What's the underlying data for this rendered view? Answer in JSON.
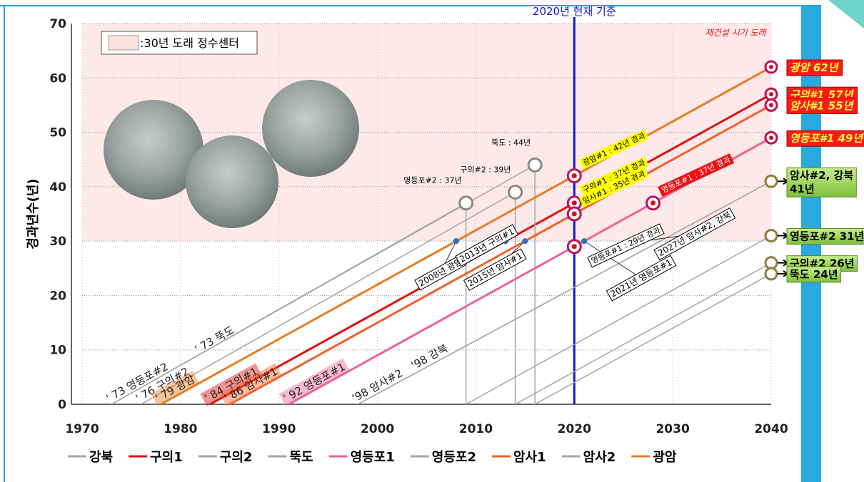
{
  "chart_data": {
    "type": "line",
    "y_label": "경과년수(년)",
    "xlim": [
      1970,
      2040
    ],
    "xticks": [
      1970,
      1980,
      1990,
      2000,
      2010,
      2020,
      2030,
      2040
    ],
    "ylim": [
      0,
      70
    ],
    "yticks": [
      0,
      10,
      20,
      30,
      40,
      50,
      60,
      70
    ],
    "grid": true,
    "threshold": {
      "value": 30,
      "label": "재건설 시기 도래",
      "color": "#fde9e9"
    },
    "legend_box": ":30년 도래 정수센터",
    "reference": {
      "x": 2020,
      "label": "2020년 현재 기준",
      "color": "#1414d8"
    },
    "series": [
      {
        "name": "강북",
        "color": "#a6a6a6",
        "x": [
          1998,
          2040
        ],
        "values": [
          0,
          41
        ],
        "start_label": "'98 강북"
      },
      {
        "name": "구의1",
        "color": "#e01010",
        "x": [
          1983,
          2040
        ],
        "values": [
          0,
          57
        ],
        "start_label": "' 84 구의#1",
        "end_label": [
          "구의#1 57년"
        ],
        "label_color": "#ff1a1a"
      },
      {
        "name": "구의2",
        "color": "#a6a6a6",
        "x": [
          1976,
          2014,
          2014,
          2040
        ],
        "values": [
          0,
          39,
          0,
          26
        ],
        "start_label": "' 76 구의#2",
        "end_label": [
          "구의#2 26년"
        ],
        "label_color": "#92d050"
      },
      {
        "name": "뚝도",
        "color": "#a6a6a6",
        "x": [
          1973,
          2016,
          2016,
          2040
        ],
        "values": [
          0,
          44,
          0,
          24
        ],
        "start_label": "' 73 뚝도",
        "end_label": [
          "뚝도 24년"
        ],
        "label_color": "#92d050"
      },
      {
        "name": "영등포1",
        "color": "#f06292",
        "x": [
          1991,
          2040
        ],
        "values": [
          0,
          49
        ],
        "start_label": "' 92 영등포#1",
        "end_label": [
          "영등포#1 49년"
        ],
        "label_color": "#ff1a1a"
      },
      {
        "name": "영등포2",
        "color": "#a6a6a6",
        "x": [
          1973,
          2009,
          2009,
          2040
        ],
        "values": [
          0,
          37,
          0,
          31
        ],
        "start_label": "' 73 영등포#2",
        "end_label": [
          "영등포#2 31년"
        ],
        "label_color": "#92d050"
      },
      {
        "name": "암사1",
        "color": "#f4602a",
        "x": [
          1985,
          2040
        ],
        "values": [
          0,
          55
        ],
        "start_label": "' 86 암사#1",
        "end_label": [
          "암사#1 55년"
        ],
        "label_color": "#ff1a1a"
      },
      {
        "name": "암사2",
        "color": "#a6a6a6",
        "x": [
          1998,
          2040
        ],
        "values": [
          0,
          41
        ],
        "start_label": "'98 암사#2",
        "end_label": [
          "암사#2, 강북",
          "41년"
        ],
        "label_color": "#92d050"
      },
      {
        "name": "광암",
        "color": "#e67e22",
        "x": [
          1978,
          2040
        ],
        "values": [
          0,
          62
        ],
        "start_label": "' 79 광암",
        "end_label": [
          "광암 62년"
        ],
        "label_color": "#ff1a1a"
      }
    ],
    "markers": [
      {
        "x": 2020,
        "y": 42,
        "label": "광암#1 : 42년 경과",
        "style": "yellow"
      },
      {
        "x": 2020,
        "y": 37,
        "label": "구의#1 : 37년 경과",
        "style": "yellow"
      },
      {
        "x": 2020,
        "y": 35,
        "label": "암사#1 : 35년 경과",
        "style": "yellow"
      },
      {
        "x": 2020,
        "y": 29,
        "label": "영등포#1 : 29년 경과",
        "style": "white"
      },
      {
        "x": 2028,
        "y": 37,
        "label": "영등포#1 : 37년 경과",
        "style": "red"
      },
      {
        "x": 2009,
        "y": 37,
        "label": "영등포#2 : 37년",
        "style": "plain"
      },
      {
        "x": 2014,
        "y": 39,
        "label": "구의#2 : 39년",
        "style": "plain"
      },
      {
        "x": 2016,
        "y": 44,
        "label": "뚝도 : 44년",
        "style": "plain"
      }
    ],
    "milestones": [
      {
        "x": 2008,
        "y": 30,
        "label": "2008년 광암"
      },
      {
        "x": 2013,
        "y": 30,
        "label": "2013년 구의#1"
      },
      {
        "x": 2015,
        "y": 30,
        "label": "2015년 암사#1"
      },
      {
        "x": 2021,
        "y": 30,
        "label": "2021년 영등포#1"
      },
      {
        "x": 2027,
        "y": 30,
        "label": "2027년 암사#2, 강북"
      }
    ]
  }
}
